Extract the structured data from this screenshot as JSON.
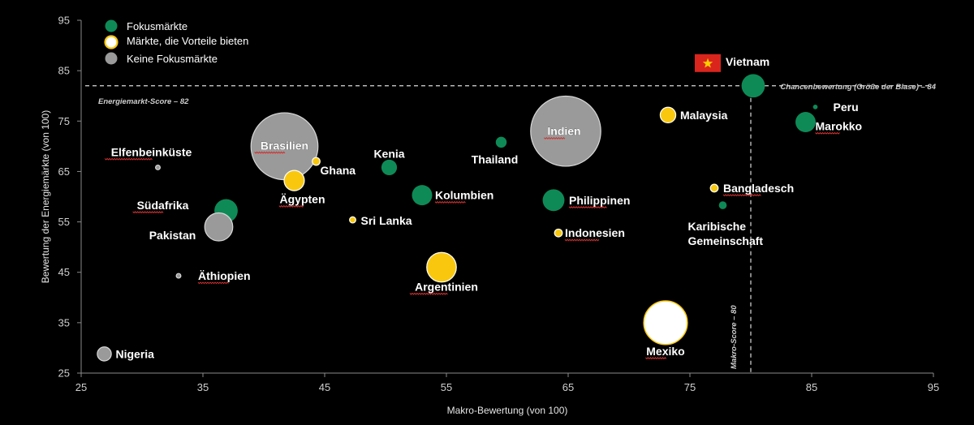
{
  "chart_data": {
    "type": "scatter",
    "subtype": "bubble",
    "xlabel": "Makro-Bewertung (von 100)",
    "ylabel": "Bewertung der Energiemärkte  (von 100)",
    "xlim": [
      25,
      95
    ],
    "ylim": [
      25,
      95
    ],
    "xticks": [
      25,
      35,
      45,
      55,
      65,
      75,
      85,
      95
    ],
    "yticks": [
      25,
      35,
      45,
      55,
      65,
      75,
      85,
      95
    ],
    "grid": false,
    "legend_position": "top-left",
    "legend": [
      {
        "key": "focus",
        "label": "Fokusmärkte",
        "color": "#0e8a57"
      },
      {
        "key": "advantage",
        "label": "Märkte, die Vorteile bieten",
        "color": "#f9c80e"
      },
      {
        "key": "nonfocus",
        "label": "Keine Fokusmärkte",
        "color": "#9a9a9a"
      }
    ],
    "reference_lines": [
      {
        "axis": "y",
        "value": 82,
        "label": "Energiemarkt-Score – 82"
      },
      {
        "axis": "x",
        "value": 80,
        "label": "Makro-Score – 80"
      }
    ],
    "bubble_size_label": "Chancenbewertung (Größe der Blase) – 84",
    "points": [
      {
        "name": "Vietnam",
        "x": 80.2,
        "y": 82,
        "size": 3,
        "category": "focus",
        "flag_icon": "vietnam-flag-icon"
      },
      {
        "name": "Peru",
        "x": 85.3,
        "y": 77.8,
        "size": 0.6,
        "category": "focus"
      },
      {
        "name": "Marokko",
        "x": 84.5,
        "y": 74.8,
        "size": 2.6,
        "category": "focus"
      },
      {
        "name": "Malaysia",
        "x": 73.2,
        "y": 76.2,
        "size": 2,
        "category": "advantage"
      },
      {
        "name": "Indien",
        "x": 64.8,
        "y": 73,
        "size": 9,
        "category": "nonfocus"
      },
      {
        "name": "Thailand",
        "x": 59.5,
        "y": 70.8,
        "size": 1.4,
        "category": "focus"
      },
      {
        "name": "Brasilien",
        "x": 41.7,
        "y": 70,
        "size": 8.6,
        "category": "nonfocus"
      },
      {
        "name": "Elfenbeinküste",
        "x": 31.3,
        "y": 65.8,
        "size": 0.6,
        "category": "nonfocus"
      },
      {
        "name": "Ghana",
        "x": 44.3,
        "y": 67,
        "size": 1,
        "category": "advantage"
      },
      {
        "name": "Kenia",
        "x": 50.3,
        "y": 65.8,
        "size": 2,
        "category": "focus"
      },
      {
        "name": "Ägypten",
        "x": 42.5,
        "y": 63.2,
        "size": 2.6,
        "category": "advantage"
      },
      {
        "name": "Kolumbien",
        "x": 53,
        "y": 60.3,
        "size": 2.6,
        "category": "focus"
      },
      {
        "name": "Philippinen",
        "x": 63.8,
        "y": 59.3,
        "size": 2.8,
        "category": "focus"
      },
      {
        "name": "Bangladesch",
        "x": 77,
        "y": 61.7,
        "size": 1,
        "category": "advantage"
      },
      {
        "name": "Karibische Gemeinschaft",
        "x": 77.7,
        "y": 58.3,
        "size": 1,
        "category": "focus"
      },
      {
        "name": "Südafrika",
        "x": 36.9,
        "y": 57.2,
        "size": 3,
        "category": "focus"
      },
      {
        "name": "Sri Lanka",
        "x": 47.3,
        "y": 55.4,
        "size": 0.8,
        "category": "advantage"
      },
      {
        "name": "Pakistan",
        "x": 36.3,
        "y": 54,
        "size": 3.6,
        "category": "nonfocus"
      },
      {
        "name": "Indonesien",
        "x": 64.2,
        "y": 52.8,
        "size": 1,
        "category": "advantage"
      },
      {
        "name": "Argentinien",
        "x": 54.6,
        "y": 46,
        "size": 3.8,
        "category": "advantage"
      },
      {
        "name": "Äthiopien",
        "x": 33,
        "y": 44.3,
        "size": 0.6,
        "category": "nonfocus"
      },
      {
        "name": "Mexiko",
        "x": 73,
        "y": 35,
        "size": 5.6,
        "category": "white"
      },
      {
        "name": "Nigeria",
        "x": 26.9,
        "y": 28.8,
        "size": 1.8,
        "category": "nonfocus"
      }
    ]
  }
}
